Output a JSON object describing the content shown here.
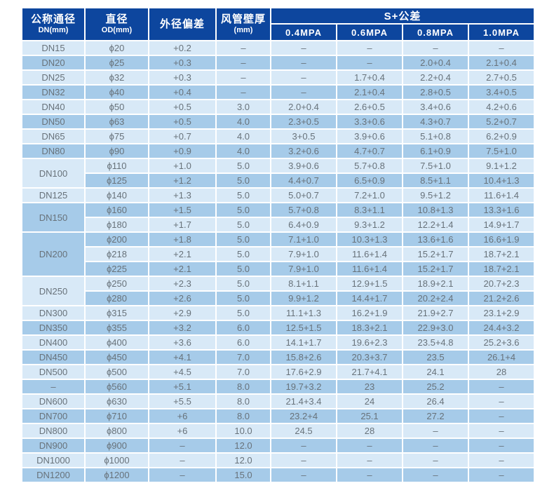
{
  "colors": {
    "header_navy": "#0d469e",
    "row_light": "#d8e9f7",
    "row_dark": "#a6cbe9",
    "header_text": "#ffffff",
    "cell_text": "#68727a",
    "page_background": "#ffffff"
  },
  "table": {
    "header": {
      "col1_title": "公称通径",
      "col1_sub": "DN(mm)",
      "col2_title": "直径",
      "col2_sub": "OD(mm)",
      "col3_title": "外径偏差",
      "col4_title": "风管壁厚",
      "col4_sub": "(mm)",
      "group_title": "S+公差",
      "pressure_cols": [
        "0.4MPA",
        "0.6MPA",
        "0.8MPA",
        "1.0MPA"
      ]
    },
    "rows": [
      {
        "dn": "DN15",
        "rowspan": 1,
        "od": "ϕ20",
        "deviation": "+0.2",
        "wall": "–",
        "values": [
          "–",
          "–",
          "–",
          "–"
        ]
      },
      {
        "dn": "DN20",
        "rowspan": 1,
        "od": "ϕ25",
        "deviation": "+0.3",
        "wall": "–",
        "values": [
          "–",
          "–",
          "2.0+0.4",
          "2.1+0.4"
        ]
      },
      {
        "dn": "DN25",
        "rowspan": 1,
        "od": "ϕ32",
        "deviation": "+0.3",
        "wall": "–",
        "values": [
          "–",
          "1.7+0.4",
          "2.2+0.4",
          "2.7+0.5"
        ]
      },
      {
        "dn": "DN32",
        "rowspan": 1,
        "od": "ϕ40",
        "deviation": "+0.4",
        "wall": "–",
        "values": [
          "–",
          "2.1+0.4",
          "2.8+0.5",
          "3.4+0.5"
        ]
      },
      {
        "dn": "DN40",
        "rowspan": 1,
        "od": "ϕ50",
        "deviation": "+0.5",
        "wall": "3.0",
        "values": [
          "2.0+0.4",
          "2.6+0.5",
          "3.4+0.6",
          "4.2+0.6"
        ]
      },
      {
        "dn": "DN50",
        "rowspan": 1,
        "od": "ϕ63",
        "deviation": "+0.5",
        "wall": "4.0",
        "values": [
          "2.3+0.5",
          "3.3+0.6",
          "4.3+0.7",
          "5.2+0.7"
        ]
      },
      {
        "dn": "DN65",
        "rowspan": 1,
        "od": "ϕ75",
        "deviation": "+0.7",
        "wall": "4.0",
        "values": [
          "3+0.5",
          "3.9+0.6",
          "5.1+0.8",
          "6.2+0.9"
        ]
      },
      {
        "dn": "DN80",
        "rowspan": 1,
        "od": "ϕ90",
        "deviation": "+0.9",
        "wall": "4.0",
        "values": [
          "3.2+0.6",
          "4.7+0.7",
          "6.1+0.9",
          "7.5+1.0"
        ]
      },
      {
        "dn": "DN100",
        "rowspan": 2,
        "od": "ϕ110",
        "deviation": "+1.0",
        "wall": "5.0",
        "values": [
          "3.9+0.6",
          "5.7+0.8",
          "7.5+1.0",
          "9.1+1.2"
        ]
      },
      {
        "dn": null,
        "rowspan": 0,
        "od": "ϕ125",
        "deviation": "+1.2",
        "wall": "5.0",
        "values": [
          "4.4+0.7",
          "6.5+0.9",
          "8.5+1.1",
          "10.4+1.3"
        ]
      },
      {
        "dn": "DN125",
        "rowspan": 1,
        "od": "ϕ140",
        "deviation": "+1.3",
        "wall": "5.0",
        "values": [
          "5.0+0.7",
          "7.2+1.0",
          "9.5+1.2",
          "11.6+1.4"
        ]
      },
      {
        "dn": "DN150",
        "rowspan": 2,
        "od": "ϕ160",
        "deviation": "+1.5",
        "wall": "5.0",
        "values": [
          "5.7+0.8",
          "8.3+1.1",
          "10.8+1.3",
          "13.3+1.6"
        ]
      },
      {
        "dn": null,
        "rowspan": 0,
        "od": "ϕ180",
        "deviation": "+1.7",
        "wall": "5.0",
        "values": [
          "6.4+0.9",
          "9.3+1.2",
          "12.2+1.4",
          "14.9+1.7"
        ]
      },
      {
        "dn": "DN200",
        "rowspan": 3,
        "od": "ϕ200",
        "deviation": "+1.8",
        "wall": "5.0",
        "values": [
          "7.1+1.0",
          "10.3+1.3",
          "13.6+1.6",
          "16.6+1.9"
        ]
      },
      {
        "dn": null,
        "rowspan": 0,
        "od": "ϕ218",
        "deviation": "+2.1",
        "wall": "5.0",
        "values": [
          "7.9+1.0",
          "11.6+1.4",
          "15.2+1.7",
          "18.7+2.1"
        ]
      },
      {
        "dn": null,
        "rowspan": 0,
        "od": "ϕ225",
        "deviation": "+2.1",
        "wall": "5.0",
        "values": [
          "7.9+1.0",
          "11.6+1.4",
          "15.2+1.7",
          "18.7+2.1"
        ]
      },
      {
        "dn": "DN250",
        "rowspan": 2,
        "od": "ϕ250",
        "deviation": "+2.3",
        "wall": "5.0",
        "values": [
          "8.1+1.1",
          "12.9+1.5",
          "18.9+2.1",
          "20.7+2.3"
        ]
      },
      {
        "dn": null,
        "rowspan": 0,
        "od": "ϕ280",
        "deviation": "+2.6",
        "wall": "5.0",
        "values": [
          "9.9+1.2",
          "14.4+1.7",
          "20.2+2.4",
          "21.2+2.6"
        ]
      },
      {
        "dn": "DN300",
        "rowspan": 1,
        "od": "ϕ315",
        "deviation": "+2.9",
        "wall": "5.0",
        "values": [
          "11.1+1.3",
          "16.2+1.9",
          "21.9+2.7",
          "23.1+2.9"
        ]
      },
      {
        "dn": "DN350",
        "rowspan": 1,
        "od": "ϕ355",
        "deviation": "+3.2",
        "wall": "6.0",
        "values": [
          "12.5+1.5",
          "18.3+2.1",
          "22.9+3.0",
          "24.4+3.2"
        ]
      },
      {
        "dn": "DN400",
        "rowspan": 1,
        "od": "ϕ400",
        "deviation": "+3.6",
        "wall": "6.0",
        "values": [
          "14.1+1.7",
          "19.6+2.3",
          "23.5+4.8",
          "25.2+3.6"
        ]
      },
      {
        "dn": "DN450",
        "rowspan": 1,
        "od": "ϕ450",
        "deviation": "+4.1",
        "wall": "7.0",
        "values": [
          "15.8+2.6",
          "20.3+3.7",
          "23.5",
          "26.1+4"
        ]
      },
      {
        "dn": "DN500",
        "rowspan": 1,
        "od": "ϕ500",
        "deviation": "+4.5",
        "wall": "7.0",
        "values": [
          "17.6+2.9",
          "21.7+4.1",
          "24.1",
          "28"
        ]
      },
      {
        "dn": "–",
        "rowspan": 1,
        "od": "ϕ560",
        "deviation": "+5.1",
        "wall": "8.0",
        "values": [
          "19.7+3.2",
          "23",
          "25.2",
          "–"
        ]
      },
      {
        "dn": "DN600",
        "rowspan": 1,
        "od": "ϕ630",
        "deviation": "+5.5",
        "wall": "8.0",
        "values": [
          "21.4+3.4",
          "24",
          "26.4",
          "–"
        ]
      },
      {
        "dn": "DN700",
        "rowspan": 1,
        "od": "ϕ710",
        "deviation": "+6",
        "wall": "8.0",
        "values": [
          "23.2+4",
          "25.1",
          "27.2",
          "–"
        ]
      },
      {
        "dn": "DN800",
        "rowspan": 1,
        "od": "ϕ800",
        "deviation": "+6",
        "wall": "10.0",
        "values": [
          "24.5",
          "28",
          "–",
          "–"
        ]
      },
      {
        "dn": "DN900",
        "rowspan": 1,
        "od": "ϕ900",
        "deviation": "–",
        "wall": "12.0",
        "values": [
          "–",
          "–",
          "–",
          "–"
        ]
      },
      {
        "dn": "DN1000",
        "rowspan": 1,
        "od": "ϕ1000",
        "deviation": "–",
        "wall": "12.0",
        "values": [
          "–",
          "–",
          "–",
          "–"
        ]
      },
      {
        "dn": "DN1200",
        "rowspan": 1,
        "od": "ϕ1200",
        "deviation": "–",
        "wall": "15.0",
        "values": [
          "–",
          "–",
          "–",
          "–"
        ]
      }
    ]
  }
}
